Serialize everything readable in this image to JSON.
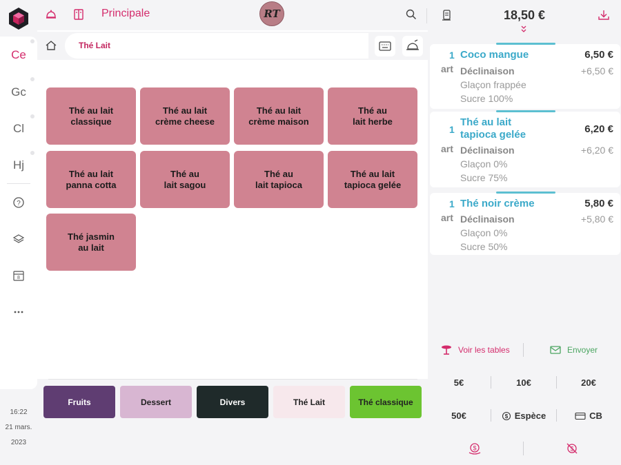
{
  "left_rail": {
    "categories": [
      {
        "label": "Ce",
        "active": true
      },
      {
        "label": "Gc",
        "active": false
      },
      {
        "label": "Cl",
        "active": false
      },
      {
        "label": "Hj",
        "active": false
      }
    ],
    "icons": [
      "help-icon",
      "layers-icon",
      "calendar-icon",
      "more-icon"
    ],
    "time": "16:22",
    "date": "21 mars.",
    "year": "2023"
  },
  "topbar": {
    "title": "Principale",
    "avatar_initials": "RT",
    "icons": [
      "bell-icon",
      "menu-book-icon",
      "search-icon",
      "receipt-icon"
    ]
  },
  "breadcrumb": {
    "current": "Thé Lait",
    "icons": [
      "home-icon",
      "keyboard-icon",
      "cloche-icon"
    ]
  },
  "products": [
    "Thé au lait\nclassique",
    "Thé au lait\ncrème cheese",
    "Thé au lait\ncrème maison",
    "Thé au\nlait herbe",
    "Thé au lait\npanna cotta",
    "Thé au\nlait sagou",
    "Thé au\nlait tapioca",
    "Thé au lait\ntapioca gelée",
    "Thé jasmin\nau lait"
  ],
  "category_bar": [
    {
      "label": "Fruits",
      "bg": "#5f3d72",
      "fg": "#ffffff"
    },
    {
      "label": "Dessert",
      "bg": "#d8b6d2",
      "fg": "#222222"
    },
    {
      "label": "Divers",
      "bg": "#1f2a2a",
      "fg": "#ffffff"
    },
    {
      "label": "Thé Lait",
      "bg": "#f7e8ec",
      "fg": "#222222"
    },
    {
      "label": "Thé classique",
      "bg": "#6cc431",
      "fg": "#222222"
    }
  ],
  "order": {
    "total": "18,50 €",
    "items": [
      {
        "qty": "1",
        "unit": "art",
        "name": "Coco mangue",
        "price": "6,50 €",
        "variant_label": "Déclinaison",
        "variant_price": "+6,50 €",
        "options": [
          "Glaçon frappée",
          "Sucre 100%"
        ]
      },
      {
        "qty": "1",
        "unit": "art",
        "name": "Thé au lait\ntapioca gelée",
        "price": "6,20 €",
        "variant_label": "Déclinaison",
        "variant_price": "+6,20 €",
        "options": [
          "Glaçon 0%",
          "Sucre 75%"
        ]
      },
      {
        "qty": "1",
        "unit": "art",
        "name": "Thé noir crème",
        "price": "5,80 €",
        "variant_label": "Déclinaison",
        "variant_price": "+5,80 €",
        "options": [
          "Glaçon 0%",
          "Sucre 50%"
        ]
      }
    ],
    "actions": {
      "tables": "Voir les tables",
      "send": "Envoyer"
    },
    "quick_amounts": [
      "5€",
      "10€",
      "20€",
      "50€"
    ],
    "payment_methods": [
      "Espèce",
      "CB"
    ]
  },
  "colors": {
    "accent": "#d42c6c",
    "tile": "#d08391",
    "item_name": "#3aa9c9",
    "send": "#4aa560"
  }
}
